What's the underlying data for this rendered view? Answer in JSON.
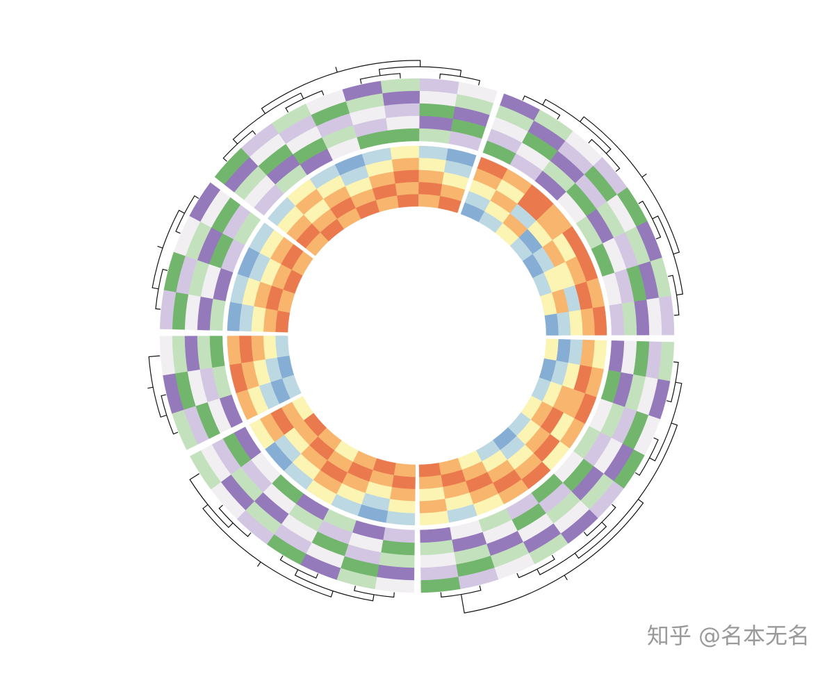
{
  "chart_data": {
    "type": "circular-heatmap",
    "watermark": "知乎 @名本无名",
    "rings": [
      {
        "palette": [
          "#9479bb",
          "#d3c6e3",
          "#f1eff2",
          "#c4e1bd",
          "#72b56d"
        ],
        "sectors": [
          [
            [
              -2,
              1,
              0,
              -1,
              2,
              -2,
              1,
              -1
            ],
            [
              1,
              -2,
              -1,
              2,
              0,
              1,
              -2,
              0
            ],
            [
              0,
              2,
              -2,
              -1,
              1,
              -1,
              2,
              -2
            ],
            [
              -1,
              0,
              1,
              2,
              -2,
              0,
              -1,
              1
            ],
            [
              2,
              -1,
              -2,
              0,
              1,
              2,
              0,
              -1
            ]
          ],
          [
            [
              1,
              -2,
              0,
              2,
              -1,
              -2,
              1,
              0,
              -1,
              2
            ],
            [
              -1,
              0,
              2,
              -2,
              1,
              0,
              -2,
              1,
              2,
              -1
            ],
            [
              2,
              1,
              -1,
              0,
              -2,
              1,
              0,
              -2,
              1,
              0
            ],
            [
              0,
              -2,
              1,
              -1,
              2,
              -1,
              2,
              0,
              -2,
              1
            ],
            [
              -2,
              2,
              0,
              1,
              0,
              2,
              -1,
              1,
              0,
              -2
            ]
          ],
          [
            [
              0,
              1,
              -2,
              2,
              -1,
              0,
              1
            ],
            [
              -2,
              2,
              0,
              -1,
              1,
              -2,
              0
            ],
            [
              1,
              -1,
              2,
              0,
              -2,
              1,
              -1
            ],
            [
              2,
              0,
              -1,
              1,
              0,
              -1,
              2
            ],
            [
              -1,
              -2,
              1,
              -2,
              2,
              0,
              -2
            ]
          ],
          [
            [
              1,
              -2,
              0
            ],
            [
              -1,
              2,
              1
            ],
            [
              2,
              0,
              -2
            ],
            [
              0,
              -1,
              1
            ],
            [
              -2,
              1,
              2
            ]
          ],
          [
            [
              -1,
              2,
              0,
              -2
            ],
            [
              2,
              -1,
              1,
              0
            ],
            [
              0,
              1,
              -2,
              2
            ],
            [
              -2,
              0,
              2,
              -1
            ],
            [
              1,
              -2,
              -1,
              1
            ]
          ],
          [
            [
              2,
              -1,
              1,
              0,
              -2,
              1,
              -1,
              0
            ],
            [
              -2,
              0,
              -1,
              2,
              1,
              -2,
              0,
              1
            ],
            [
              1,
              2,
              0,
              -1,
              0,
              -1,
              2,
              -2
            ],
            [
              0,
              -2,
              2,
              1,
              -1,
              0,
              -2,
              2
            ],
            [
              -1,
              1,
              -2,
              0,
              2,
              2,
              1,
              -1
            ]
          ]
        ]
      },
      {
        "palette": [
          "#86add3",
          "#bcd8e2",
          "#fbf4b3",
          "#f7b56e",
          "#ea7a4d"
        ],
        "sectors": [
          [
            [
              2,
              1,
              2,
              1,
              2,
              2,
              1,
              2
            ],
            [
              1,
              0,
              2,
              1,
              0,
              1,
              2,
              1
            ],
            [
              0,
              1,
              -1,
              0,
              1,
              0,
              -1,
              0
            ],
            [
              -1,
              0,
              1,
              -2,
              -1,
              0,
              1,
              -1
            ],
            [
              -2,
              -1,
              0,
              -1,
              -2,
              -1,
              0,
              -2
            ]
          ],
          [
            [
              0,
              1,
              2,
              1,
              0,
              2,
              1,
              0,
              -1,
              0
            ],
            [
              1,
              2,
              1,
              0,
              2,
              1,
              2,
              1,
              0,
              1
            ],
            [
              -1,
              0,
              1,
              2,
              1,
              0,
              1,
              2,
              1,
              0
            ],
            [
              -2,
              -1,
              0,
              1,
              0,
              -1,
              0,
              1,
              2,
              1
            ],
            [
              0,
              -2,
              -1,
              0,
              -1,
              -2,
              -1,
              0,
              1,
              2
            ]
          ],
          [
            [
              -1,
              -2,
              -1,
              0,
              -1,
              -2,
              0
            ],
            [
              0,
              -1,
              0,
              1,
              0,
              -1,
              1
            ],
            [
              1,
              0,
              1,
              2,
              1,
              0,
              2
            ],
            [
              2,
              1,
              2,
              1,
              2,
              1,
              1
            ],
            [
              1,
              2,
              1,
              0,
              1,
              2,
              0
            ]
          ],
          [
            [
              1,
              2,
              1
            ],
            [
              0,
              1,
              2
            ],
            [
              -1,
              0,
              1
            ],
            [
              -2,
              -1,
              0
            ],
            [
              -1,
              -2,
              -1
            ]
          ],
          [
            [
              -2,
              -1,
              -2,
              -1
            ],
            [
              -1,
              0,
              -1,
              0
            ],
            [
              0,
              1,
              0,
              1
            ],
            [
              1,
              2,
              1,
              2
            ],
            [
              2,
              1,
              2,
              1
            ]
          ],
          [
            [
              -1,
              0,
              -1,
              -2,
              -1,
              0,
              -1,
              -2
            ],
            [
              0,
              1,
              0,
              -1,
              0,
              1,
              0,
              -1
            ],
            [
              1,
              0,
              1,
              0,
              1,
              2,
              1,
              0
            ],
            [
              2,
              1,
              2,
              1,
              2,
              1,
              2,
              1
            ],
            [
              1,
              2,
              1,
              2,
              1,
              2,
              1,
              2
            ]
          ]
        ]
      }
    ]
  }
}
